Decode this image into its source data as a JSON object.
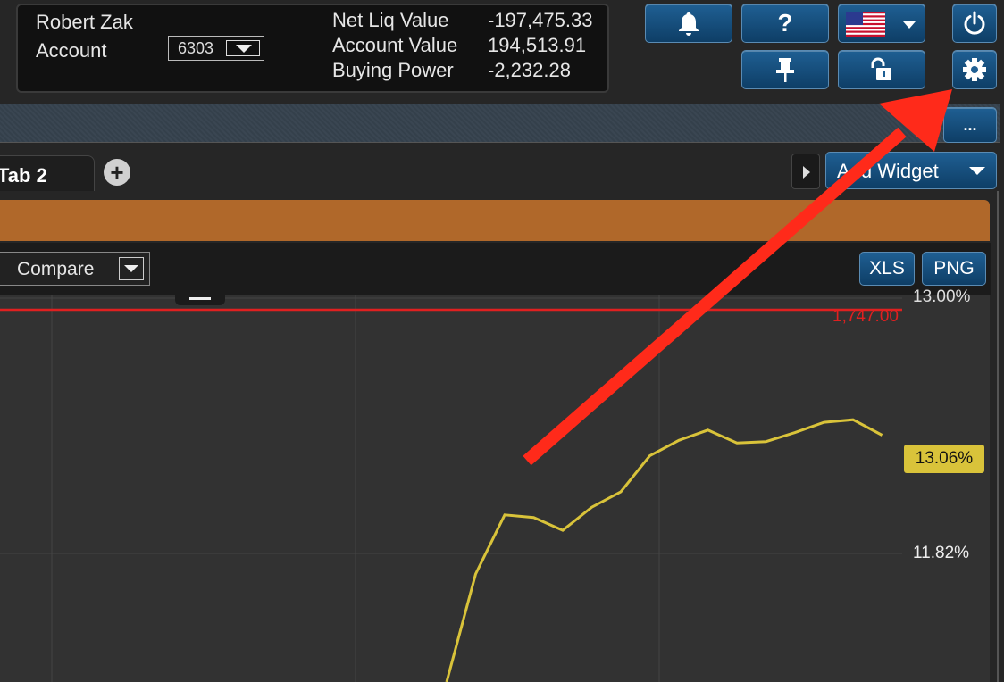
{
  "account": {
    "name": "Robert Zak",
    "label": "Account",
    "number": "6303"
  },
  "stats": [
    {
      "label": "Net Liq Value",
      "value": "-197,475.33"
    },
    {
      "label": "Account Value",
      "value": "194,513.91"
    },
    {
      "label": "Buying Power",
      "value": "-2,232.28"
    }
  ],
  "toolbar": {
    "more_label": "...",
    "help_label": "?"
  },
  "tabs": {
    "active_label": "Tab 2",
    "add_label": "+"
  },
  "add_widget": {
    "label": "Add Widget"
  },
  "widget": {
    "compare_label": "Compare",
    "xls_label": "XLS",
    "png_label": "PNG",
    "accent_color": "#b0682a"
  },
  "chart_data": {
    "type": "line",
    "y_labels": [
      "13.00%",
      "11.82%"
    ],
    "ref_line": {
      "label": "1,747.00",
      "color": "#e02020"
    },
    "current_value": "13.06%",
    "series": [
      {
        "color": "#d9c33a",
        "points": [
          [
            0,
            0.0
          ],
          [
            1,
            0.42
          ],
          [
            2,
            0.65
          ],
          [
            3,
            0.64
          ],
          [
            4,
            0.59
          ],
          [
            5,
            0.68
          ],
          [
            6,
            0.74
          ],
          [
            7,
            0.88
          ],
          [
            8,
            0.94
          ],
          [
            9,
            0.98
          ],
          [
            10,
            0.93
          ],
          [
            11,
            0.935
          ],
          [
            12,
            0.97
          ],
          [
            13,
            1.01
          ],
          [
            14,
            1.02
          ],
          [
            15,
            0.96
          ]
        ]
      }
    ]
  }
}
